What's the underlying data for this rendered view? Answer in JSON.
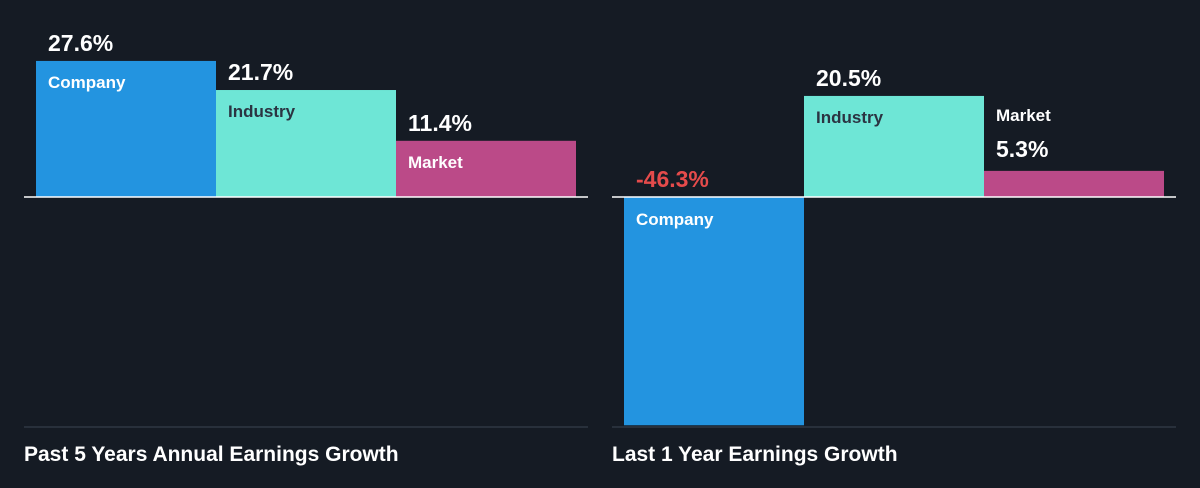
{
  "colors": {
    "background": "#151b24",
    "company": "#2394e0",
    "industry": "#6ee6d6",
    "market": "#bb4a88",
    "value_text": "#ffffff",
    "negative_value_text": "#e54b4b",
    "bar_label_on_blue": "#ffffff",
    "bar_label_on_teal": "#2b3442",
    "bar_label_on_pink": "#ffffff",
    "baseline": "#ffffff",
    "separator": "#3c4452"
  },
  "chart_data": [
    {
      "type": "bar",
      "title": "Past 5 Years Annual Earnings Growth",
      "unit": "%",
      "categories": [
        "Company",
        "Industry",
        "Market"
      ],
      "values": [
        27.6,
        21.7,
        11.4
      ],
      "value_labels": [
        "27.6%",
        "21.7%",
        "11.4%"
      ],
      "grid": false,
      "legend": "none"
    },
    {
      "type": "bar",
      "title": "Last 1 Year Earnings Growth",
      "unit": "%",
      "categories": [
        "Company",
        "Industry",
        "Market"
      ],
      "values": [
        -46.3,
        20.5,
        5.3
      ],
      "value_labels": [
        "-46.3%",
        "20.5%",
        "5.3%"
      ],
      "grid": false,
      "legend": "none"
    }
  ]
}
